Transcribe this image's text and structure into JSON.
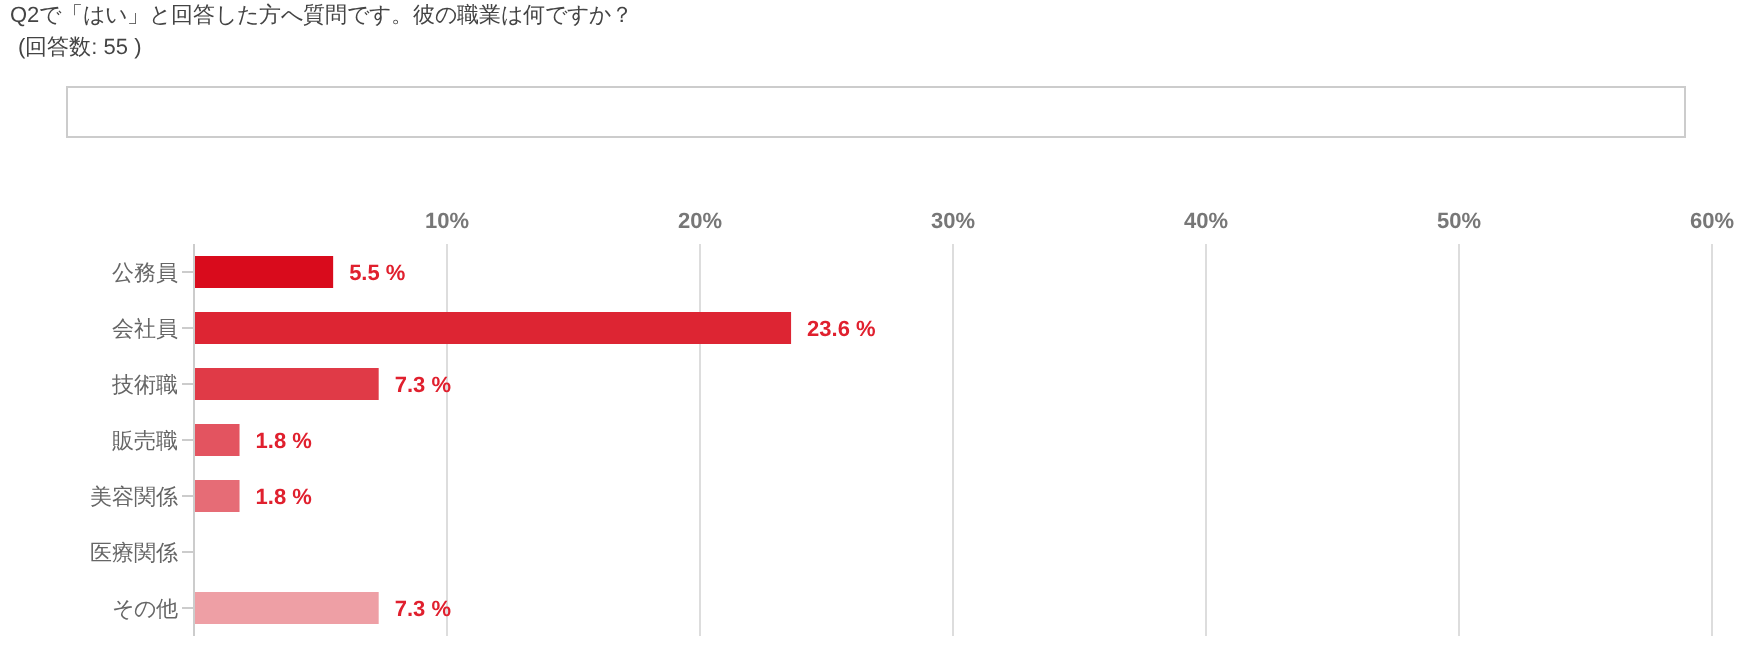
{
  "chart_data": {
    "type": "bar",
    "orientation": "horizontal",
    "title": "Q2で「はい」と回答した方へ質問です。彼の職業は何ですか？",
    "subtitle": "(回答数: 55 )",
    "categories": [
      "公務員",
      "会社員",
      "技術職",
      "販売職",
      "美容関係",
      "医療関係",
      "その他"
    ],
    "values": [
      5.5,
      23.6,
      7.3,
      1.8,
      1.8,
      0,
      7.3
    ],
    "value_labels": [
      "5.5 %",
      "23.6 %",
      "7.3 %",
      "1.8 %",
      "1.8 %",
      null,
      "7.3 %"
    ],
    "colors": [
      "#d90b1c",
      "#dd2533",
      "#e03a47",
      "#e35460",
      "#e66c76",
      "#e98890",
      "#ee9fa5"
    ],
    "xlim": [
      0,
      60
    ],
    "xticks": [
      {
        "value": 0,
        "label": null
      },
      {
        "value": 10,
        "label": "10%"
      },
      {
        "value": 20,
        "label": "20%"
      },
      {
        "value": 30,
        "label": "30%"
      },
      {
        "value": 40,
        "label": "40%"
      },
      {
        "value": 50,
        "label": "50%"
      },
      {
        "value": 60,
        "label": "60%"
      }
    ],
    "grid": "x"
  }
}
